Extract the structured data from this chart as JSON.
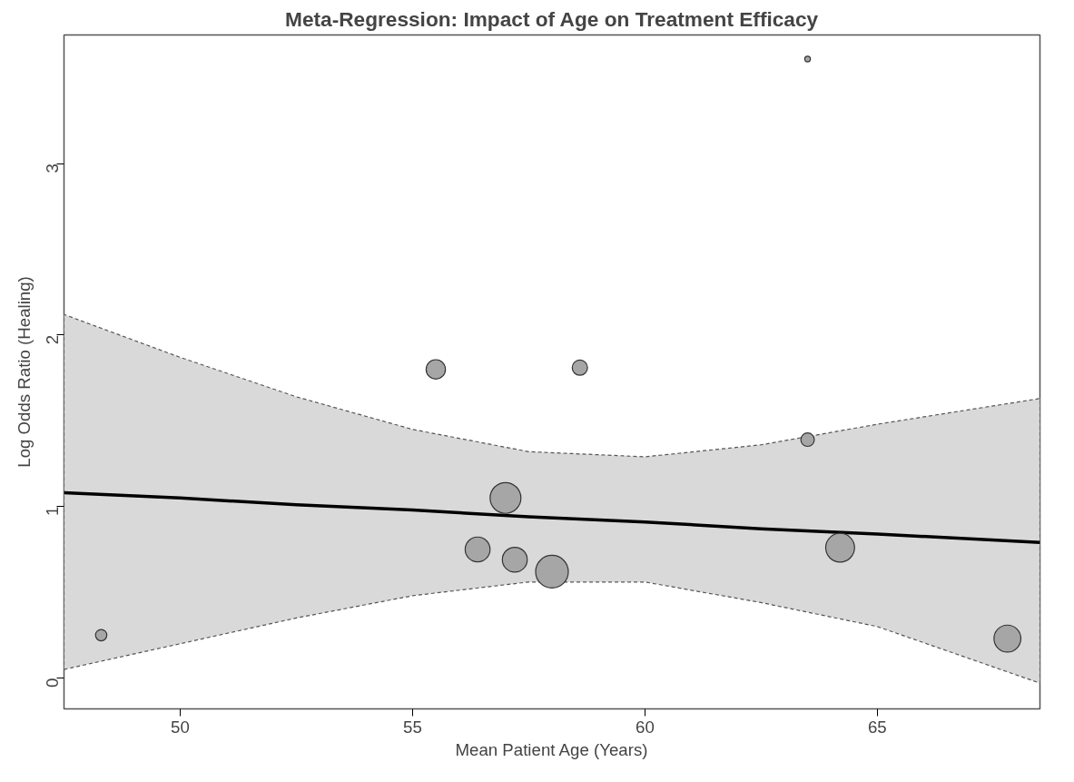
{
  "chart_data": {
    "type": "bubble",
    "title": "Meta-Regression: Impact of Age on Treatment Efficacy",
    "xlabel": "Mean Patient Age (Years)",
    "ylabel": "Log Odds Ratio (Healing)",
    "xlim": [
      47.5,
      68.5
    ],
    "ylim": [
      -0.18,
      3.75
    ],
    "xticks": [
      50,
      55,
      60,
      65
    ],
    "yticks": [
      0,
      1,
      2,
      3
    ],
    "grid": false,
    "series": [
      {
        "type": "line",
        "color": "#000000",
        "x": [
          47.5,
          50,
          52.5,
          55,
          57.5,
          60,
          62.5,
          65,
          68.5
        ],
        "values": [
          1.08,
          1.05,
          1.01,
          0.98,
          0.94,
          0.91,
          0.87,
          0.84,
          0.79
        ],
        "lower": [
          0.05,
          0.2,
          0.35,
          0.48,
          0.56,
          0.56,
          0.44,
          0.3,
          -0.03
        ],
        "upper": [
          2.12,
          1.87,
          1.64,
          1.45,
          1.32,
          1.29,
          1.36,
          1.48,
          1.63
        ]
      },
      {
        "type": "bubble",
        "color": "#a6a6a6",
        "x": [
          48.3,
          55.5,
          58.6,
          63.5,
          63.5,
          57.0,
          56.4,
          57.2,
          58.0,
          64.2,
          67.8
        ],
        "values": [
          0.25,
          1.8,
          1.81,
          3.61,
          1.39,
          1.05,
          0.75,
          0.69,
          0.62,
          0.76,
          0.23
        ],
        "sizes": [
          0.12,
          0.35,
          0.22,
          0.03,
          0.17,
          0.89,
          0.58,
          0.58,
          1,
          0.78,
          0.68
        ]
      }
    ]
  }
}
